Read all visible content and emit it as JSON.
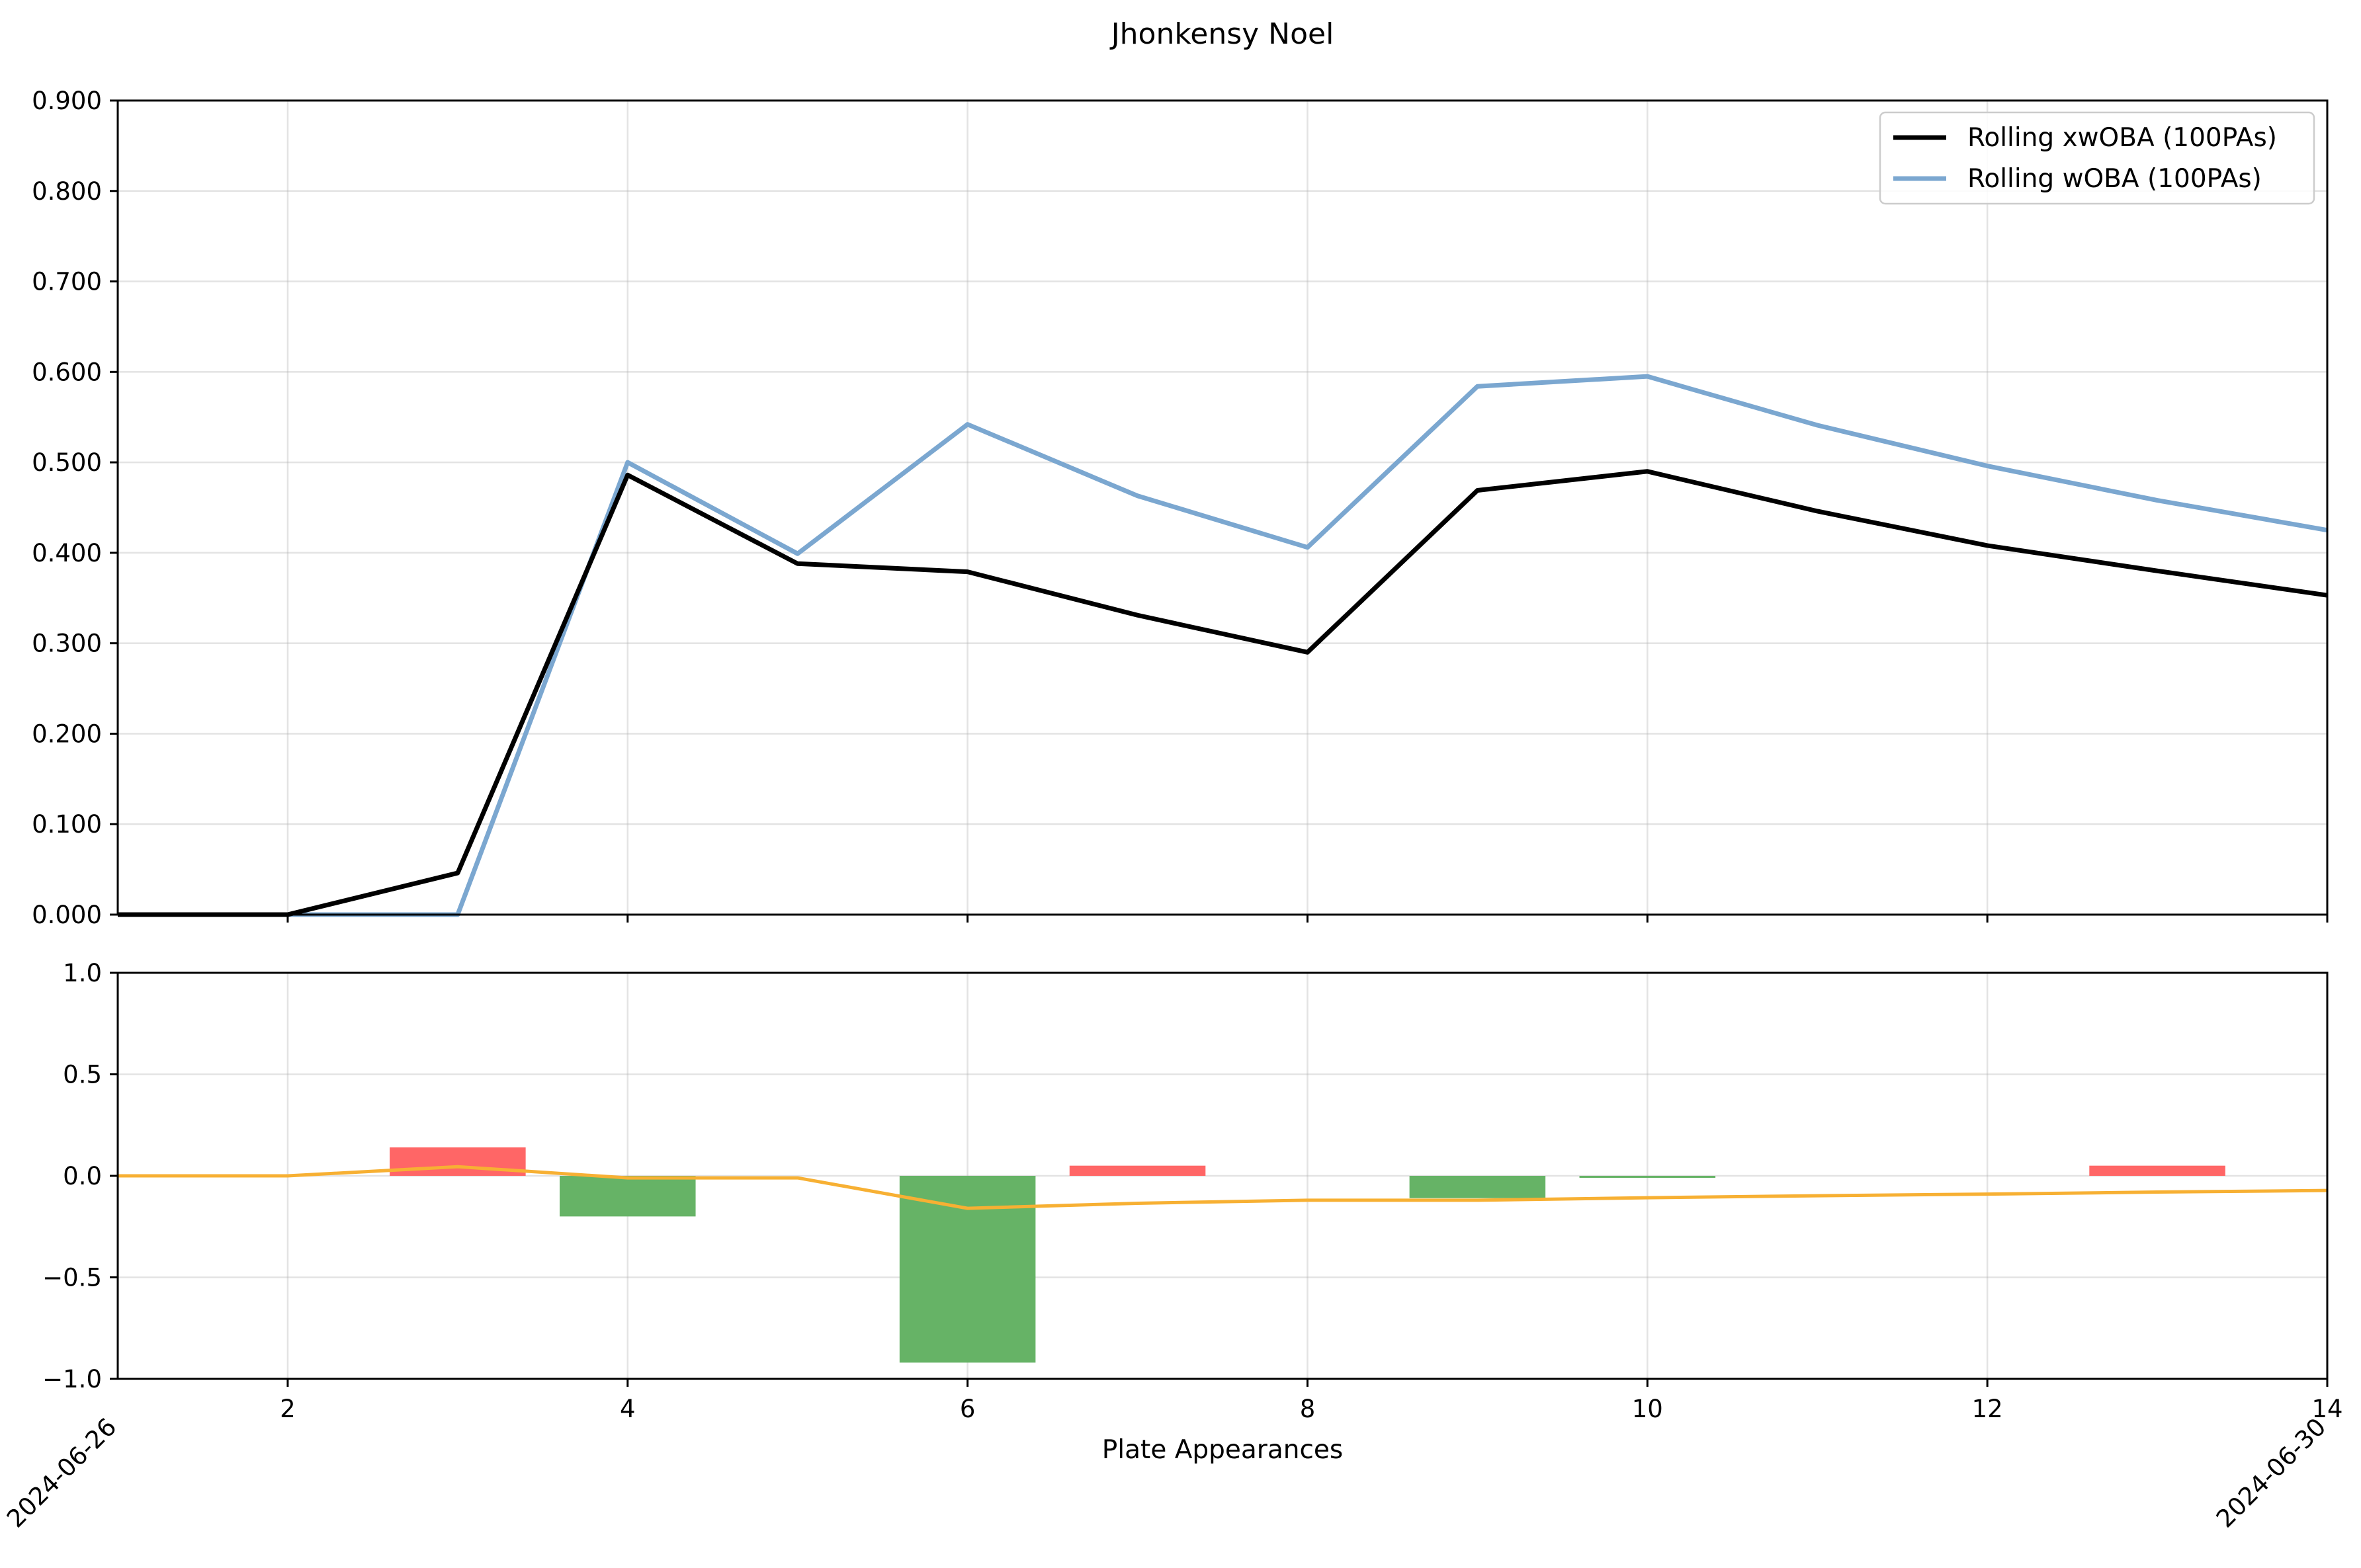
{
  "chart_data": {
    "title": "Jhonkensy Noel",
    "xlabel": "Plate Appearances",
    "x_ticks": [
      2,
      4,
      6,
      8,
      10,
      12,
      14
    ],
    "date_labels": [
      {
        "x": 1,
        "label": "2024-06-26"
      },
      {
        "x": 14,
        "label": "2024-06-30"
      }
    ],
    "top": {
      "type": "line",
      "ylim": [
        0,
        0.9
      ],
      "yticks": [
        "0.000",
        "0.100",
        "0.200",
        "0.300",
        "0.400",
        "0.500",
        "0.600",
        "0.700",
        "0.800",
        "0.900"
      ],
      "grid": true,
      "legend_position": "top-right",
      "x": [
        1,
        2,
        3,
        4,
        5,
        6,
        7,
        8,
        9,
        10,
        11,
        12,
        13,
        14
      ],
      "series": [
        {
          "name": "Rolling xwOBA (100PAs)",
          "color": "#000000",
          "values": [
            0.0,
            0.0,
            0.046,
            0.486,
            0.388,
            0.379,
            0.331,
            0.29,
            0.469,
            0.49,
            0.446,
            0.408,
            0.38,
            0.353
          ]
        },
        {
          "name": "Rolling wOBA (100PAs)",
          "color": "#7ba7d0",
          "values": [
            0.0,
            0.0,
            0.0,
            0.5,
            0.399,
            0.542,
            0.463,
            0.406,
            0.584,
            0.595,
            0.541,
            0.496,
            0.458,
            0.425
          ]
        }
      ]
    },
    "bottom": {
      "type": "bar",
      "ylim": [
        -1.0,
        1.0
      ],
      "yticks": [
        "−1.0",
        "−0.5",
        "0.0",
        "0.5",
        "1.0"
      ],
      "grid": true,
      "x": [
        3,
        4,
        6,
        7,
        9,
        10,
        13
      ],
      "values": [
        0.14,
        -0.2,
        -0.92,
        0.05,
        -0.11,
        -0.01,
        0.05
      ],
      "positive_color": "#ff6666",
      "negative_color": "#66b366",
      "line": {
        "color": "#f7b033",
        "x": [
          1,
          2,
          3,
          4,
          5,
          6,
          7,
          8,
          9,
          10,
          11,
          12,
          13,
          14
        ],
        "values": [
          0.0,
          0.0,
          0.045,
          -0.01,
          -0.01,
          -0.16,
          -0.135,
          -0.12,
          -0.12,
          -0.108,
          -0.098,
          -0.09,
          -0.08,
          -0.072
        ]
      }
    }
  }
}
